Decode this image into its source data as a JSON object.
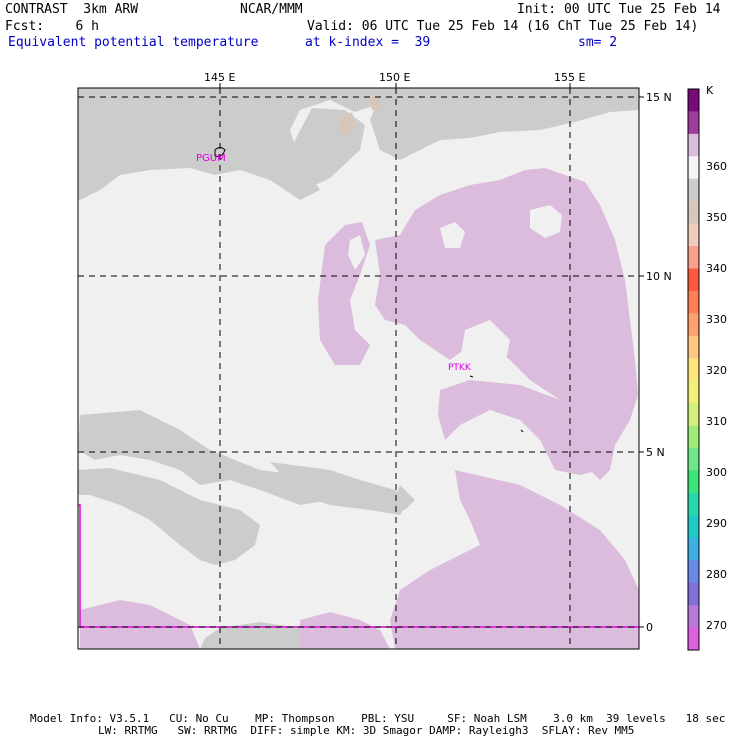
{
  "header": {
    "left1": "CONTRAST  3km ARW",
    "left2": "Fcst:    6 h",
    "left3": "Equivalent potential temperature",
    "center1": "NCAR/MMM",
    "center2": "Valid: 06 UTC Tue 25 Feb 14 (16 ChT Tue 25 Feb 14)",
    "center3": "at k-index =  39",
    "right1": "Init: 00 UTC Tue 25 Feb 14",
    "right3": "sm= 2"
  },
  "map": {
    "lon_labels": [
      "145 E",
      "150 E",
      "155 E"
    ],
    "lat_labels": [
      "15 N",
      "10 N",
      "5 N",
      "0"
    ],
    "stations": [
      "PGUM",
      "PTKK"
    ]
  },
  "colorbar": {
    "unit": "K",
    "labels": [
      "360",
      "350",
      "340",
      "330",
      "320",
      "310",
      "300",
      "290",
      "280",
      "270"
    ],
    "colors": [
      "#7a0a7a",
      "#a03c9c",
      "#dcbcdc",
      "#f5f5f5",
      "#cccccc",
      "#d7c7bb",
      "#f2ccbc",
      "#f7a08c",
      "#ff5840",
      "#ff7f55",
      "#ffa070",
      "#ffc882",
      "#ffe57a",
      "#f0f07a",
      "#d2f07a",
      "#a0ec78",
      "#70e68a",
      "#3ce47a",
      "#28d8a8",
      "#20c8c8",
      "#3cb0e0",
      "#6a8ae8",
      "#8070d8",
      "#b878d8",
      "#de60de"
    ]
  },
  "footer": {
    "line1": "Model Info: V3.5.1   CU: No Cu    MP: Thompson    PBL: YSU     SF: Noah LSM    3.0 km  39 levels   18 sec",
    "line2": "LW: RRTMG   SW: RRTMG  DIFF: simple KM: 3D Smagor DAMP: Rayleigh3  SFLAY: Rev MM5"
  }
}
